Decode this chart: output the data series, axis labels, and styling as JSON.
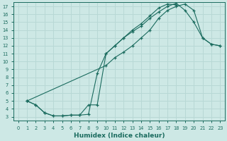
{
  "xlabel": "Humidex (Indice chaleur)",
  "ylabel": "",
  "bg_color": "#cde8e5",
  "line_color": "#1a6b5e",
  "grid_color": "#b8d8d5",
  "xlim": [
    -0.5,
    23.5
  ],
  "ylim": [
    2.5,
    17.5
  ],
  "xticks": [
    0,
    1,
    2,
    3,
    4,
    5,
    6,
    7,
    8,
    9,
    10,
    11,
    12,
    13,
    14,
    15,
    16,
    17,
    18,
    19,
    20,
    21,
    22,
    23
  ],
  "yticks": [
    3,
    4,
    5,
    6,
    7,
    8,
    9,
    10,
    11,
    12,
    13,
    14,
    15,
    16,
    17
  ],
  "line1_x": [
    1,
    2,
    3,
    4,
    5,
    6,
    7,
    8,
    9,
    10,
    11,
    12,
    13,
    14,
    15,
    16,
    17,
    18
  ],
  "line1_y": [
    5.0,
    4.5,
    3.5,
    3.1,
    3.1,
    3.2,
    3.2,
    3.3,
    8.5,
    11.0,
    12.0,
    13.0,
    14.0,
    14.8,
    15.8,
    16.8,
    17.3,
    17.2
  ],
  "line2_x": [
    1,
    2,
    3,
    4,
    5,
    6,
    7,
    8,
    9,
    10,
    11,
    12,
    13,
    14,
    15,
    16,
    17,
    18,
    19,
    20,
    21,
    22,
    23
  ],
  "line2_y": [
    5.0,
    4.5,
    3.5,
    3.1,
    3.1,
    3.2,
    3.2,
    4.5,
    4.5,
    11.0,
    12.0,
    13.0,
    13.8,
    14.5,
    15.5,
    16.3,
    17.0,
    17.4,
    16.5,
    15.0,
    13.0,
    12.2,
    12.0
  ],
  "line3_x": [
    1,
    10,
    11,
    12,
    13,
    14,
    15,
    16,
    17,
    18,
    19,
    20,
    21,
    22,
    23
  ],
  "line3_y": [
    5.0,
    9.5,
    10.5,
    11.2,
    12.0,
    13.0,
    14.0,
    15.5,
    16.5,
    17.0,
    17.3,
    16.5,
    13.0,
    12.2,
    12.0
  ]
}
